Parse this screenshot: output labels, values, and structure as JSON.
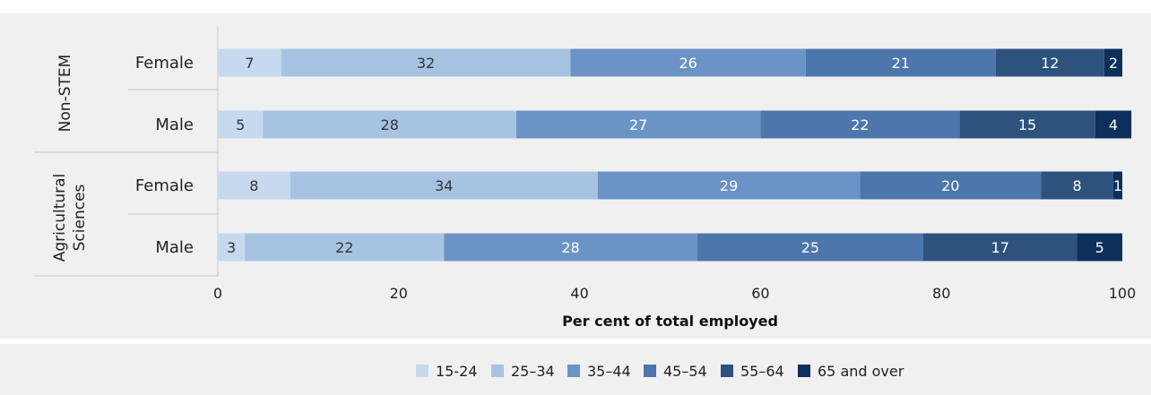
{
  "chart_data": {
    "type": "bar",
    "orientation": "horizontal",
    "stacked": true,
    "xlabel": "Per cent of total employed",
    "xlim": [
      0,
      100
    ],
    "x_ticks": [
      "0",
      "20",
      "40",
      "60",
      "80",
      "100"
    ],
    "legend_position": "bottom",
    "groups": [
      {
        "label": "Non-STEM",
        "categories": [
          "Female",
          "Male"
        ]
      },
      {
        "label_lines": [
          "Agricultural",
          "Sciences"
        ],
        "categories": [
          "Female",
          "Male"
        ]
      }
    ],
    "series": [
      {
        "name": "15-24",
        "color": "#c6d9ee",
        "label_color": "#333333",
        "values": [
          7,
          5,
          8,
          3
        ]
      },
      {
        "name": "25–34",
        "color": "#a7c3e2",
        "label_color": "#333333",
        "values": [
          32,
          28,
          34,
          22
        ]
      },
      {
        "name": "35–44",
        "color": "#6b93c6",
        "label_color": "#ffffff",
        "values": [
          26,
          27,
          29,
          28
        ]
      },
      {
        "name": "45–54",
        "color": "#4c76ac",
        "label_color": "#ffffff",
        "values": [
          21,
          22,
          20,
          25
        ]
      },
      {
        "name": "55–64",
        "color": "#2e527e",
        "label_color": "#ffffff",
        "values": [
          12,
          15,
          8,
          17
        ]
      },
      {
        "name": "65 and over",
        "color": "#0c2f5c",
        "label_color": "#ffffff",
        "values": [
          2,
          4,
          1,
          5
        ]
      }
    ]
  }
}
